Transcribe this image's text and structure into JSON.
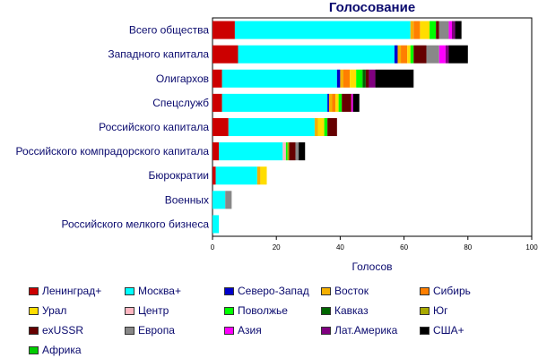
{
  "chart_data": {
    "type": "bar",
    "orientation": "horizontal",
    "stacked": true,
    "title": "Голосование",
    "xlabel": "Голосов",
    "ylabel": "",
    "xlim": [
      0,
      100
    ],
    "xticks": [
      0,
      20,
      40,
      60,
      80,
      100
    ],
    "grid": false,
    "legend_position": "bottom",
    "categories": [
      "Всего общества",
      "Западного капитала",
      "Олигархов",
      "Спецслужб",
      "Российского капитала",
      "Российского компрадорского капитала",
      "Бюрократии",
      "Военных",
      "Российского мелкого бизнеса"
    ],
    "series": [
      {
        "name": "Ленинград+",
        "color": "#cc0000",
        "values": [
          7,
          8,
          3,
          3,
          5,
          2,
          1,
          0,
          0
        ]
      },
      {
        "name": "Москва+",
        "color": "#00ffff",
        "values": [
          55,
          49,
          36,
          33,
          27,
          20,
          13,
          4,
          2
        ]
      },
      {
        "name": "Северо-Запад",
        "color": "#0000cc",
        "values": [
          0,
          1,
          1,
          0.5,
          0,
          0,
          0,
          0,
          0
        ]
      },
      {
        "name": "Восток",
        "color": "#f5b000",
        "values": [
          1,
          1,
          1,
          1,
          1,
          0,
          1,
          0,
          0
        ]
      },
      {
        "name": "Сибирь",
        "color": "#ff7f00",
        "values": [
          2,
          2,
          2,
          1,
          0,
          0,
          0,
          0,
          0
        ]
      },
      {
        "name": "Урал",
        "color": "#ffdd00",
        "values": [
          3,
          1,
          2,
          1,
          2,
          0,
          2,
          0,
          0
        ]
      },
      {
        "name": "Центр",
        "color": "#ffb6c1",
        "values": [
          0,
          0,
          0,
          0,
          0,
          1,
          0,
          0,
          0
        ]
      },
      {
        "name": "Поволжье",
        "color": "#00ff00",
        "values": [
          2,
          1,
          2,
          1,
          1,
          0.5,
          0,
          0,
          0
        ]
      },
      {
        "name": "Кавказ",
        "color": "#006600",
        "values": [
          0,
          0,
          1,
          0,
          0,
          0,
          0,
          0,
          0
        ]
      },
      {
        "name": "Юг",
        "color": "#aaaa00",
        "values": [
          0,
          0,
          0,
          0,
          0,
          0.5,
          0,
          0,
          0
        ]
      },
      {
        "name": "exUSSR",
        "color": "#660000",
        "values": [
          1,
          4,
          1,
          3,
          3,
          2,
          0,
          0,
          0
        ]
      },
      {
        "name": "Европа",
        "color": "#888888",
        "values": [
          3,
          4,
          0,
          0,
          0,
          1,
          0,
          2,
          0
        ]
      },
      {
        "name": "Азия",
        "color": "#ff00ff",
        "values": [
          1,
          2,
          0,
          0.5,
          0,
          0,
          0,
          0,
          0
        ]
      },
      {
        "name": "Лат.Америка",
        "color": "#800080",
        "values": [
          1,
          1,
          2,
          0,
          0,
          0,
          0,
          0,
          0
        ]
      },
      {
        "name": "США+",
        "color": "#000000",
        "values": [
          2,
          6,
          12,
          2,
          0,
          2,
          0,
          0,
          0
        ]
      },
      {
        "name": "Африка",
        "color": "#00cc00",
        "values": [
          0,
          0,
          0,
          0,
          0,
          0,
          0,
          0,
          0
        ]
      }
    ]
  }
}
